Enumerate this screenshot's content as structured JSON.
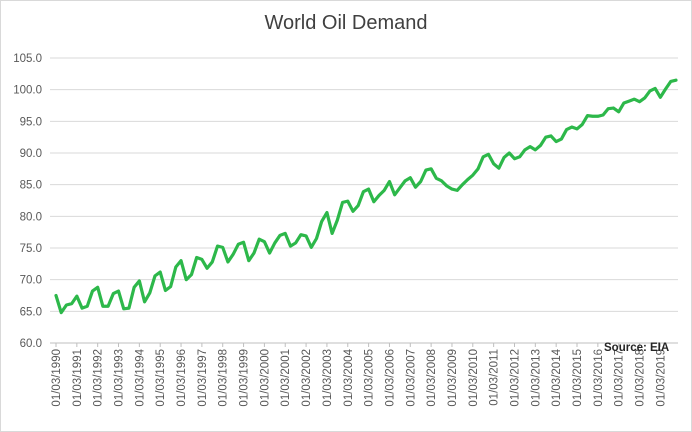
{
  "chart_data": {
    "type": "line",
    "title": "World Oil Demand",
    "xlabel": "",
    "ylabel": "",
    "ylim": [
      60.0,
      105.0
    ],
    "y_ticks": [
      "60.0",
      "65.0",
      "70.0",
      "75.0",
      "80.0",
      "85.0",
      "90.0",
      "95.0",
      "100.0",
      "105.0"
    ],
    "x_tick_labels": [
      "01/03/1990",
      "01/03/1991",
      "01/03/1992",
      "01/03/1993",
      "01/03/1994",
      "01/03/1995",
      "01/03/1996",
      "01/03/1997",
      "01/03/1998",
      "01/03/1999",
      "01/03/2000",
      "01/03/2001",
      "01/03/2002",
      "01/03/2003",
      "01/03/2004",
      "01/03/2005",
      "01/03/2006",
      "01/03/2007",
      "01/03/2008",
      "01/03/2009",
      "01/03/2010",
      "01/03/2011",
      "01/03/2012",
      "01/03/2013",
      "01/03/2014",
      "01/03/2015",
      "01/03/2016",
      "01/03/2017",
      "01/03/2018",
      "01/03/2019"
    ],
    "grid": true,
    "legend": "none",
    "annotation": "Source: EIA",
    "colors": {
      "line": "#2db84a",
      "grid": "#d9d9d9",
      "axis": "#bfbfbf",
      "text": "#595959"
    },
    "x_start": "1990-Q1",
    "x_step": "quarter",
    "series": [
      {
        "values": [
          67.5,
          64.8,
          66.0,
          66.2,
          67.4,
          65.5,
          65.8,
          68.2,
          68.8,
          65.8,
          65.8,
          67.8,
          68.2,
          65.4,
          65.5,
          68.8,
          69.8,
          66.5,
          67.9,
          70.6,
          71.2,
          68.3,
          68.9,
          72.0,
          73.0,
          70.0,
          70.8,
          73.5,
          73.2,
          71.8,
          72.8,
          75.3,
          75.1,
          72.8,
          74.0,
          75.6,
          75.9,
          73.0,
          74.2,
          76.4,
          76.0,
          74.2,
          75.8,
          77.0,
          77.3,
          75.3,
          75.8,
          77.1,
          76.9,
          75.1,
          76.5,
          79.2,
          80.6,
          77.3,
          79.4,
          82.2,
          82.4,
          80.8,
          81.7,
          83.9,
          84.3,
          82.3,
          83.3,
          84.1,
          85.5,
          83.4,
          84.5,
          85.6,
          86.1,
          84.6,
          85.5,
          87.3,
          87.5,
          86.0,
          85.6,
          84.8,
          84.3,
          84.1,
          85.0,
          85.8,
          86.5,
          87.5,
          89.4,
          89.8,
          88.3,
          87.6,
          89.3,
          90.0,
          89.1,
          89.4,
          90.5,
          91.0,
          90.5,
          91.2,
          92.5,
          92.7,
          91.8,
          92.2,
          93.7,
          94.1,
          93.8,
          94.5,
          95.9,
          95.8,
          95.8,
          96.0,
          97.0,
          97.1,
          96.5,
          97.9,
          98.2,
          98.5,
          98.1,
          98.7,
          99.8,
          100.2,
          98.8,
          100.1,
          101.3,
          101.5
        ]
      }
    ]
  }
}
